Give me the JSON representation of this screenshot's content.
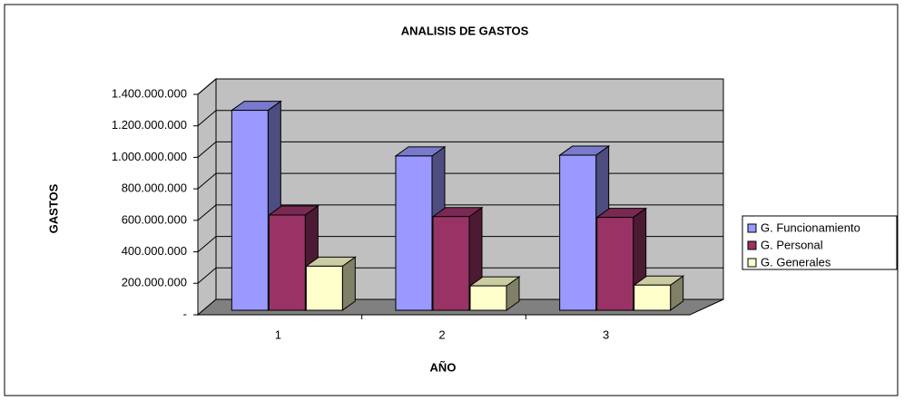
{
  "chart_data": {
    "type": "bar",
    "title": "ANALISIS DE GASTOS",
    "x_label": "AÑO",
    "y_label": "GASTOS",
    "categories": [
      "1",
      "2",
      "3"
    ],
    "series": [
      {
        "name": "G. Funcionamiento",
        "color": "#9999FF",
        "values": [
          1270000000,
          980000000,
          985000000
        ]
      },
      {
        "name": "G. Personal",
        "color": "#993366",
        "values": [
          605000000,
          595000000,
          590000000
        ]
      },
      {
        "name": "G. Generales",
        "color": "#FFFFCC",
        "values": [
          280000000,
          155000000,
          160000000
        ]
      }
    ],
    "ylim": [
      0,
      1400000000
    ],
    "yticks": [
      {
        "value": 0,
        "label": "-"
      },
      {
        "value": 200000000,
        "label": "200.000.000"
      },
      {
        "value": 400000000,
        "label": "400.000.000"
      },
      {
        "value": 600000000,
        "label": "600.000.000"
      },
      {
        "value": 800000000,
        "label": "800.000.000"
      },
      {
        "value": 1000000000,
        "label": "1.000.000.000"
      },
      {
        "value": 1200000000,
        "label": "1.200.000.000"
      },
      {
        "value": 1400000000,
        "label": "1.400.000.000"
      }
    ],
    "grid": true,
    "legend": "right"
  }
}
